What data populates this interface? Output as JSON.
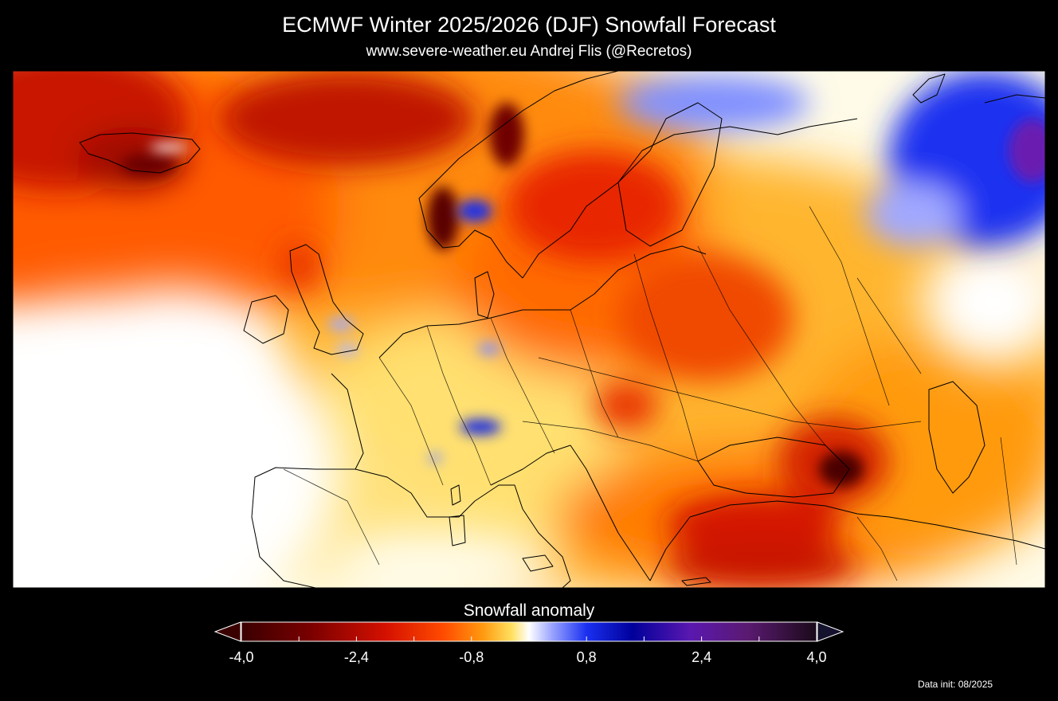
{
  "header": {
    "title": "ECMWF Winter 2025/2026 (DJF) Snowfall Forecast",
    "subtitle": "www.severe-weather.eu   Andrej Flis (@Recretos)"
  },
  "map": {
    "region": "Europe",
    "variable": "Snowfall anomaly",
    "season": "DJF",
    "colors": {
      "strong_negative": "#3a0000",
      "negative": "#e82000",
      "moderate_negative": "#ff7a00",
      "slight_negative": "#ffd24a",
      "neutral": "#ffffff",
      "positive": "#1a2fe8",
      "strong_positive": "#6a18b0",
      "coastline": "#000000"
    }
  },
  "legend": {
    "title": "Snowfall anomaly",
    "min": -4.0,
    "max": 4.0,
    "tick_labels": [
      "-4,0",
      "-2,4",
      "-0,8",
      "0,8",
      "2,4",
      "4,0"
    ],
    "tick_values": [
      -4.0,
      -2.4,
      -0.8,
      0.8,
      2.4,
      4.0
    ],
    "extend": "both"
  },
  "footer": {
    "data_init": "Data init: 08/2025"
  }
}
